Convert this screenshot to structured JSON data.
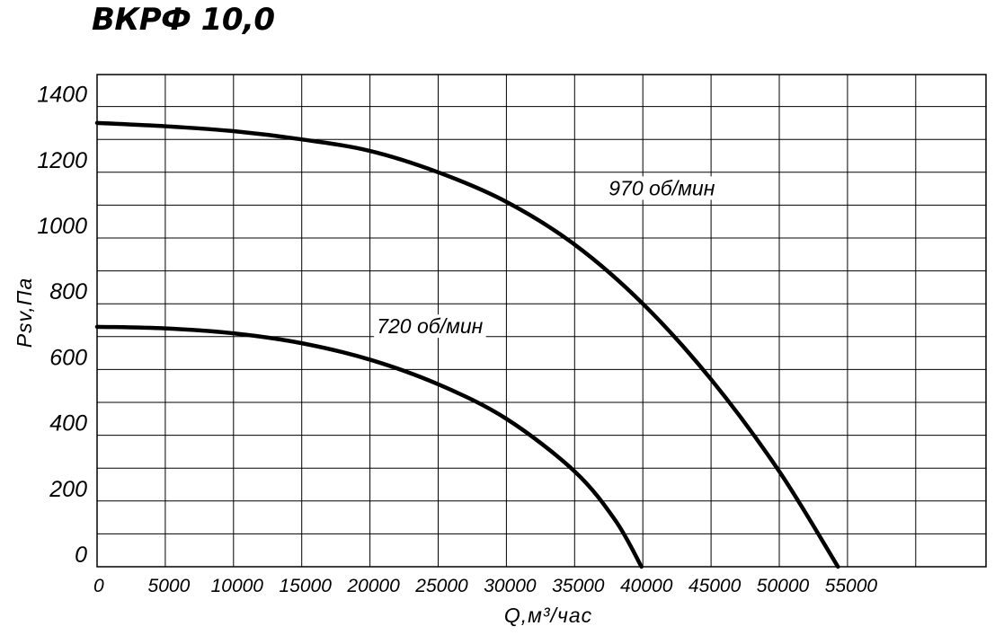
{
  "chart_data": {
    "type": "line",
    "title": "ВКРФ 10,0",
    "xlabel": "Q,м³/час",
    "ylabel": "Psv,Па",
    "xlim": [
      0,
      65000
    ],
    "ylim": [
      0,
      1500
    ],
    "x_ticks": [
      0,
      5000,
      10000,
      15000,
      20000,
      25000,
      30000,
      35000,
      40000,
      45000,
      50000,
      55000
    ],
    "y_ticks": [
      0,
      200,
      400,
      600,
      800,
      1000,
      1200,
      1400
    ],
    "grid": true,
    "series": [
      {
        "name": "970 об/мин",
        "x": [
          0,
          5000,
          10000,
          15000,
          20000,
          25000,
          30000,
          35000,
          40000,
          45000,
          50000,
          54300
        ],
        "y": [
          1350,
          1340,
          1325,
          1300,
          1265,
          1200,
          1110,
          980,
          800,
          570,
          290,
          0
        ]
      },
      {
        "name": "720 об/мин",
        "x": [
          0,
          5000,
          10000,
          15000,
          20000,
          25000,
          30000,
          35000,
          38000,
          39900
        ],
        "y": [
          730,
          725,
          710,
          680,
          630,
          555,
          450,
          290,
          140,
          0
        ]
      }
    ]
  }
}
